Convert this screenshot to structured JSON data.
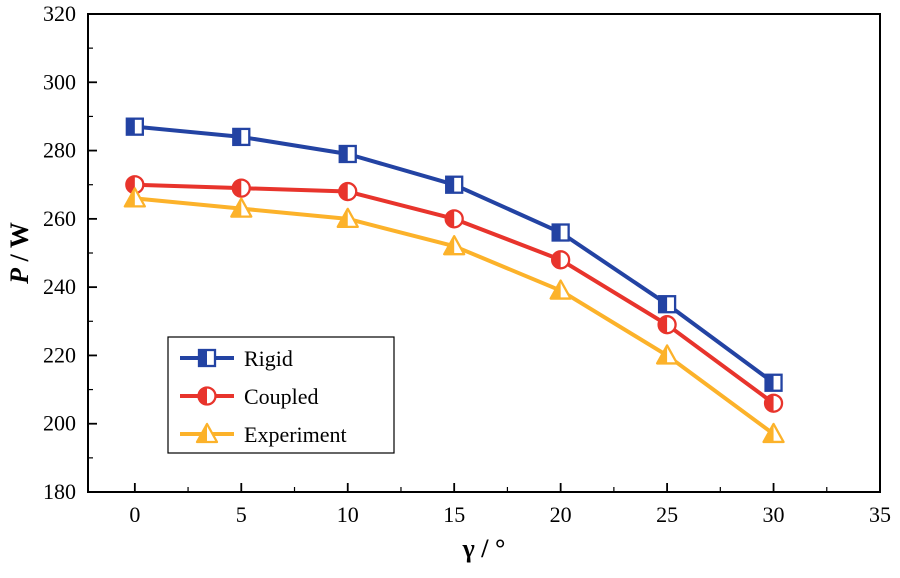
{
  "chart_data": {
    "type": "line",
    "title": "",
    "xlabel": "γ / °",
    "ylabel": "P / W",
    "x": [
      0,
      5,
      10,
      15,
      20,
      25,
      30
    ],
    "series": [
      {
        "name": "Rigid",
        "color": "#2343a3",
        "marker": "square",
        "values": [
          287,
          284,
          279,
          270,
          256,
          235,
          212
        ]
      },
      {
        "name": "Coupled",
        "color": "#e8342c",
        "marker": "circle",
        "values": [
          270,
          269,
          268,
          260,
          248,
          229,
          206
        ]
      },
      {
        "name": "Experiment",
        "color": "#fcb22a",
        "marker": "triangle",
        "values": [
          266,
          263,
          260,
          252,
          239,
          220,
          197
        ]
      }
    ],
    "xlim": [
      -2.2,
      35
    ],
    "ylim": [
      180,
      320
    ],
    "xticks": [
      0,
      5,
      10,
      15,
      20,
      25,
      30,
      35
    ],
    "yticks": [
      180,
      200,
      220,
      240,
      260,
      280,
      300,
      320
    ],
    "x_minor_step": 2.5,
    "y_minor_step": 10,
    "grid": false,
    "legend_position": "inside-lower-left",
    "frame_color": "#000000",
    "background_color": "#ffffff"
  }
}
